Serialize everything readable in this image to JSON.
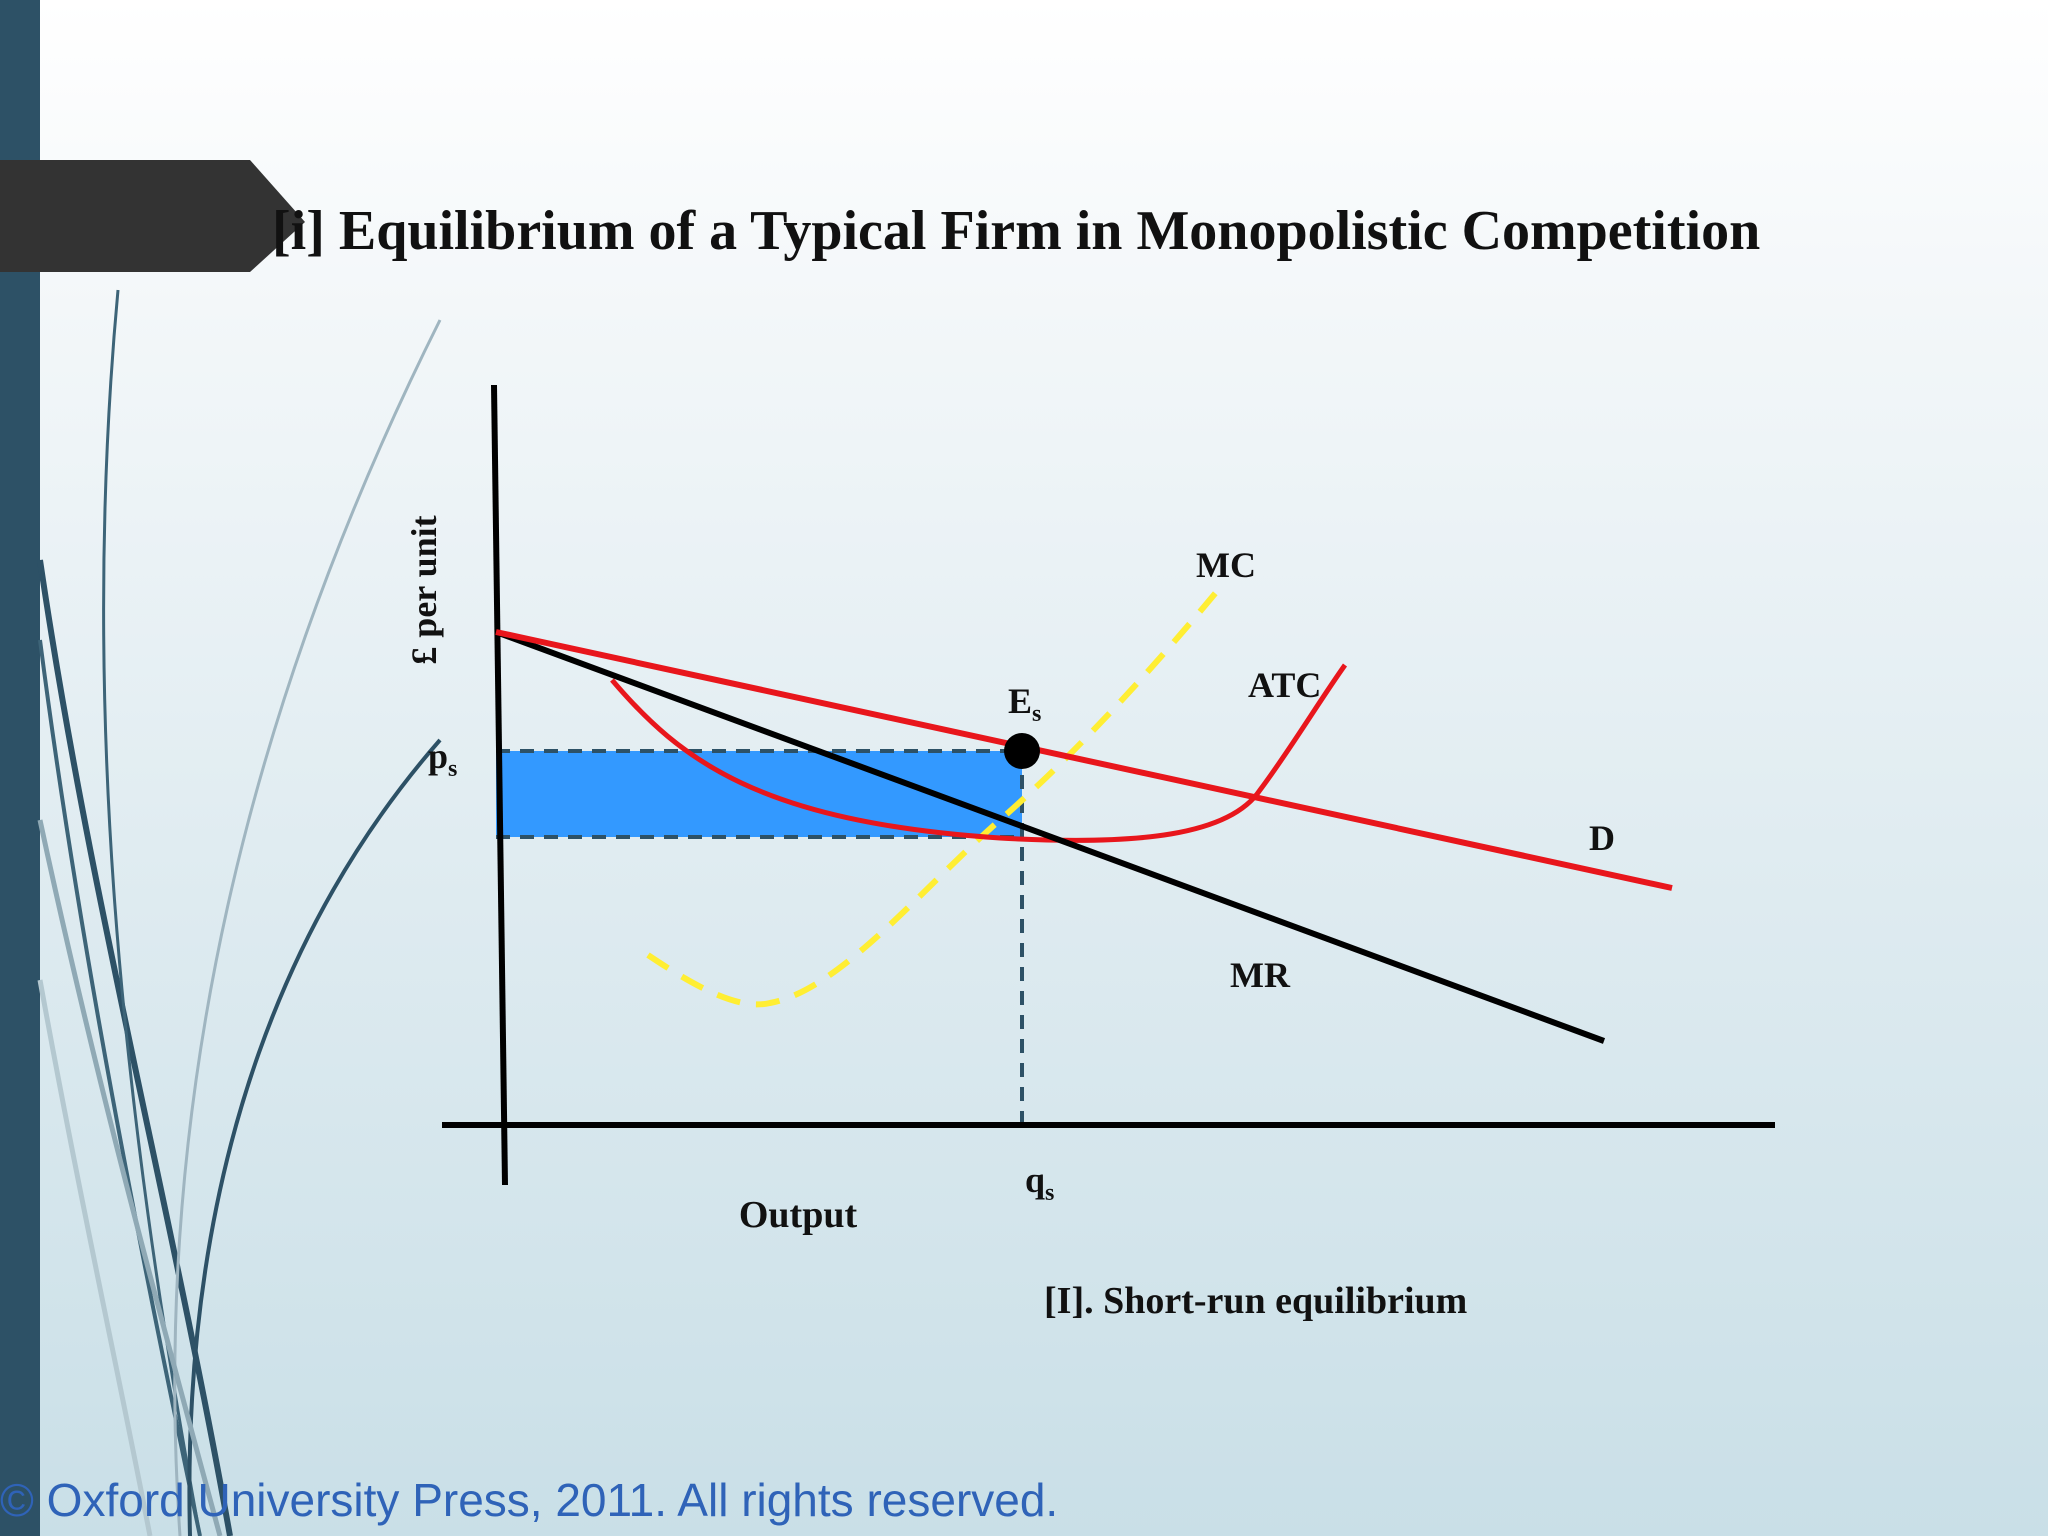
{
  "slide": {
    "title": "[i] Equilibrium of a Typical Firm in Monopolistic Competition",
    "caption": "[I]. Short-run equilibrium",
    "copyright": "© Oxford University Press, 2011. All rights reserved."
  },
  "colors": {
    "left_bar": "#2d5166",
    "banner": "#333333",
    "demand": "#e8161c",
    "atc": "#e8161c",
    "mr": "#000000",
    "mc": "#ffee33",
    "profit_area": "#3399ff",
    "copyright_text": "#2f63b8"
  },
  "diagram": {
    "y_axis_label": "£ per unit",
    "x_axis_label": "Output",
    "price_label": "p",
    "price_sub": "s",
    "quantity_label": "q",
    "quantity_sub": "s",
    "equilibrium_label": "E",
    "equilibrium_sub": "s",
    "curves": [
      {
        "id": "mc",
        "label": "MC",
        "style": "dashed"
      },
      {
        "id": "atc",
        "label": "ATC",
        "style": "solid"
      },
      {
        "id": "d",
        "label": "D",
        "style": "solid"
      },
      {
        "id": "mr",
        "label": "MR",
        "style": "solid"
      }
    ]
  }
}
